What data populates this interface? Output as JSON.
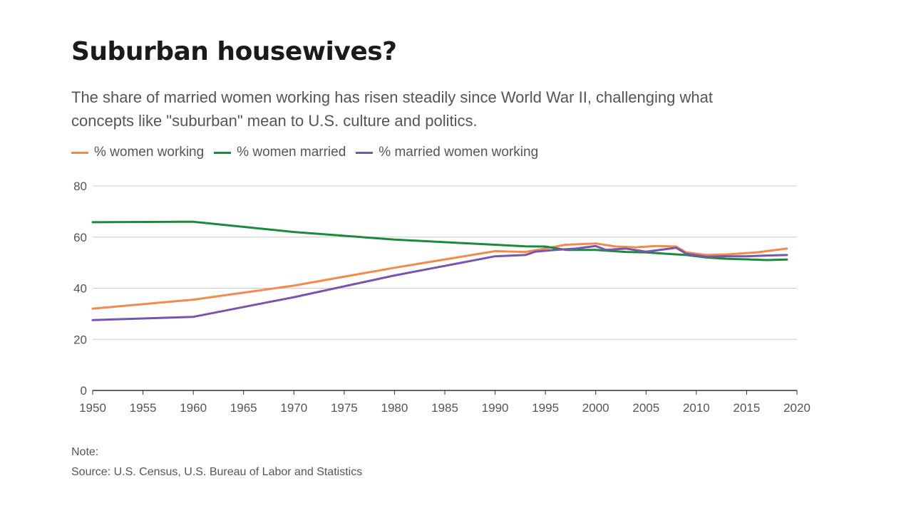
{
  "title": "Suburban housewives?",
  "subtitle": "The share of married women working has risen steadily since World War II, challenging what concepts like \"suburban\" mean to U.S. culture and politics.",
  "note": "Note:",
  "source": "Source: U.S. Census, U.S. Bureau of Labor and Statistics",
  "colors": {
    "women_working": "#f28b4a",
    "women_married": "#1a8a3c",
    "married_women_working": "#7a55b0",
    "grid": "#cccccc",
    "axis": "#333333"
  },
  "chart_data": {
    "type": "line",
    "xlabel": "",
    "ylabel": "",
    "xlim": [
      1950,
      2020
    ],
    "ylim": [
      0,
      80
    ],
    "x_ticks": [
      1950,
      1955,
      1960,
      1965,
      1970,
      1975,
      1980,
      1985,
      1990,
      1995,
      2000,
      2005,
      2010,
      2015,
      2020
    ],
    "y_ticks": [
      0,
      20,
      40,
      60,
      80
    ],
    "grid": true,
    "legend_position": "top-left",
    "series": [
      {
        "name": "% women working",
        "color_key": "women_working",
        "x": [
          1950,
          1960,
          1970,
          1980,
          1990,
          1993,
          1995,
          1997,
          2000,
          2002,
          2004,
          2006,
          2008,
          2009,
          2011,
          2013,
          2016,
          2019
        ],
        "y": [
          32,
          35.5,
          41,
          48,
          54.5,
          54.2,
          55.5,
          57,
          57.5,
          56.3,
          56,
          56.5,
          56.3,
          54,
          53,
          53.2,
          54,
          55.5
        ]
      },
      {
        "name": "% women married",
        "color_key": "women_married",
        "x": [
          1950,
          1960,
          1970,
          1980,
          1990,
          1993,
          1995,
          1997,
          2000,
          2003,
          2005,
          2007,
          2009,
          2011,
          2013,
          2015,
          2017,
          2019
        ],
        "y": [
          65.8,
          66,
          62,
          59,
          57,
          56.4,
          56.3,
          55,
          55,
          54.2,
          54,
          53.5,
          53,
          52,
          51.5,
          51.3,
          51,
          51.2
        ]
      },
      {
        "name": "% married women working",
        "color_key": "married_women_working",
        "x": [
          1950,
          1960,
          1970,
          1980,
          1990,
          1993,
          1994,
          1996,
          1998,
          2000,
          2001,
          2003,
          2005,
          2007,
          2008,
          2009,
          2011,
          2013,
          2015,
          2017,
          2019
        ],
        "y": [
          27.5,
          28.8,
          36.5,
          45,
          52.5,
          53,
          54.3,
          55,
          55.5,
          56.5,
          55,
          55.5,
          54.3,
          55.3,
          55.8,
          53.5,
          52.3,
          52.5,
          52.5,
          52.8,
          53
        ]
      }
    ]
  }
}
